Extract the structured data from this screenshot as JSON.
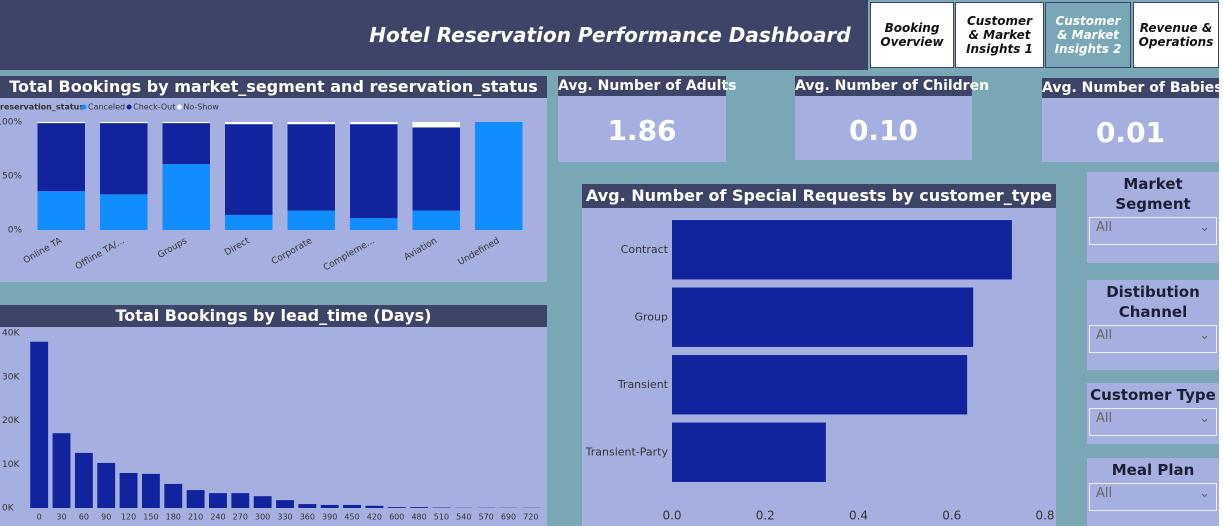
{
  "header": {
    "title": "Hotel Reservation Performance Dashboard",
    "nav": [
      "Booking Overview",
      "Customer & Market Insights 1",
      "Customer & Market Insights 2",
      "Revenue & Operations"
    ]
  },
  "cards": [
    {
      "title": "Avg. Number of Adults",
      "value": "1.86"
    },
    {
      "title": "Avg. Number of Children",
      "value": "0.10"
    },
    {
      "title": "Avg. Number of Babies",
      "value": "0.01"
    }
  ],
  "slicers": [
    {
      "title": "Market Segment",
      "value": "All"
    },
    {
      "title": "Distibution Channel",
      "value": "All"
    },
    {
      "title": "Customer Type",
      "value": "All"
    },
    {
      "title": "Meal Plan",
      "value": "All"
    }
  ],
  "chart_data": [
    {
      "type": "bar",
      "stacked": true,
      "title": "Total Bookings by market_segment and reservation_status",
      "legend_title": "reservation_status",
      "categories": [
        "Online TA",
        "Offline TA/...",
        "Groups",
        "Direct",
        "Corporate",
        "Compleme...",
        "Aviation",
        "Undefined"
      ],
      "series": [
        {
          "name": "Canceled",
          "color": "#118dff",
          "values": [
            36,
            33,
            61,
            14,
            18,
            11,
            18,
            100
          ]
        },
        {
          "name": "Check-Out",
          "color": "#12239e",
          "values": [
            63,
            66,
            38,
            84,
            80,
            87,
            77,
            0
          ]
        },
        {
          "name": "No-Show",
          "color": "#ffffff",
          "values": [
            1,
            1,
            1,
            2,
            2,
            2,
            5,
            0
          ]
        }
      ],
      "ylim": [
        0,
        100
      ],
      "yticks": [
        {
          "value": 0,
          "label": "0%"
        },
        {
          "value": 50,
          "label": "50%"
        },
        {
          "value": 100,
          "label": "100%"
        }
      ]
    },
    {
      "type": "bar",
      "title": "Total Bookings by lead_time (Days)",
      "color": "#12239e",
      "categories": [
        0,
        30,
        60,
        90,
        120,
        150,
        180,
        210,
        240,
        270,
        300,
        330,
        360,
        390,
        450,
        420,
        600,
        480,
        510,
        540,
        570,
        690,
        720
      ],
      "values": [
        38000,
        17100,
        12600,
        10300,
        8000,
        7800,
        5500,
        4100,
        3400,
        3400,
        2700,
        1800,
        900,
        700,
        700,
        500,
        200,
        200,
        100,
        50,
        50,
        50,
        50
      ],
      "ylim": [
        0,
        40000
      ],
      "yticks": [
        {
          "value": 0,
          "label": "0K"
        },
        {
          "value": 10000,
          "label": "10K"
        },
        {
          "value": 20000,
          "label": "20K"
        },
        {
          "value": 30000,
          "label": "30K"
        },
        {
          "value": 40000,
          "label": "40K"
        }
      ]
    },
    {
      "type": "bar",
      "horizontal": true,
      "title": "Avg. Number of Special Requests by customer_type",
      "color": "#12239e",
      "categories": [
        "Contract",
        "Group",
        "Transient",
        "Transient-Party"
      ],
      "values": [
        0.729,
        0.646,
        0.633,
        0.33
      ],
      "xlim": [
        0,
        0.8
      ],
      "xticks": [
        {
          "value": 0,
          "label": "0.0"
        },
        {
          "value": 0.2,
          "label": "0.2"
        },
        {
          "value": 0.4,
          "label": "0.4"
        },
        {
          "value": 0.6,
          "label": "0.6"
        },
        {
          "value": 0.8,
          "label": "0.8"
        }
      ]
    }
  ]
}
